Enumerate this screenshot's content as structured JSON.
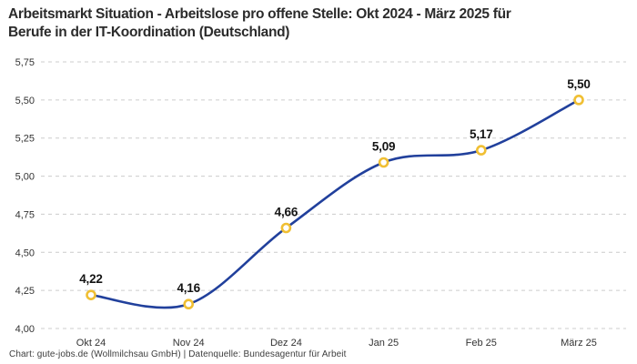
{
  "title": "Arbeitsmarkt Situation - Arbeitslose pro offene Stelle: Okt 2024 - März 2025 für\nBerufe in der IT-Koordination (Deutschland)",
  "footer": "Chart: gute-jobs.de (Wollmilchsau GmbH) | Datenquelle: Bundesagentur für Arbeit",
  "chart_data": {
    "type": "line",
    "title": "Arbeitsmarkt Situation - Arbeitslose pro offene Stelle: Okt 2024 - März 2025 für Berufe in der IT-Koordination (Deutschland)",
    "categories": [
      "Okt 24",
      "Nov 24",
      "Dez 24",
      "Jan 25",
      "Feb 25",
      "März 25"
    ],
    "values": [
      4.22,
      4.16,
      4.66,
      5.09,
      5.17,
      5.5
    ],
    "value_labels": [
      "4,22",
      "4,16",
      "4,66",
      "5,09",
      "5,17",
      "5,50"
    ],
    "xlabel": "",
    "ylabel": "",
    "ylim": [
      4.0,
      5.75
    ],
    "ytick_step": 0.25,
    "ytick_labels": [
      "4,00",
      "4,25",
      "4,50",
      "4,75",
      "5,00",
      "5,25",
      "5,50",
      "5,75"
    ],
    "grid": "horizontal-dashed",
    "legend": "none",
    "line_style": "smooth",
    "colors": {
      "line": "#21409c",
      "marker_ring": "#f0bf33",
      "marker_fill": "#ffffff",
      "grid": "#cccccc"
    }
  }
}
